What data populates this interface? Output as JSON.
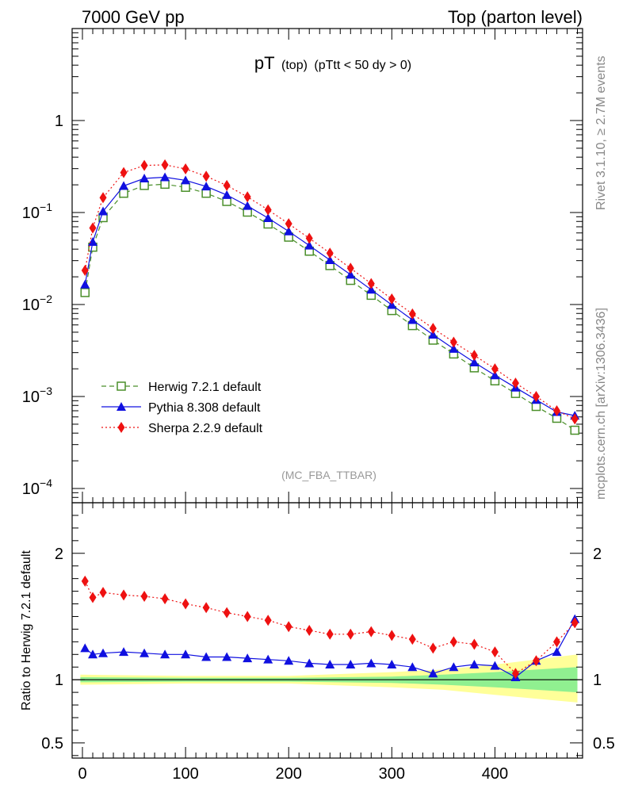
{
  "header": {
    "left": "7000 GeV pp",
    "right": "Top (parton level)"
  },
  "title": {
    "main": "pT",
    "sub1": "(top)",
    "sub2": "(pTtt < 50 dy > 0)"
  },
  "side_labels": {
    "rivet": "Rivet 3.1.10, ≥ 2.7M events",
    "mcplots": "mcplots.cern.ch [arXiv:1306.3436]"
  },
  "analysis_tag": "(MC_FBA_TTBAR)",
  "ratio_ylabel": "Ratio to Herwig 7.2.1 default",
  "colors": {
    "herwig": "#4a8f2a",
    "pythia": "#1010e0",
    "sherpa": "#ee1111",
    "band_inner": "#90f090",
    "band_outer": "#ffff99"
  },
  "chart_data": [
    {
      "type": "line",
      "panel": "main",
      "yscale": "log",
      "xlim": [
        -10,
        485
      ],
      "ylim": [
        7e-05,
        10
      ],
      "xticks": [
        0,
        100,
        200,
        300,
        400
      ],
      "yticks": [
        {
          "value": 0.0001,
          "base": "10",
          "exp": "−4"
        },
        {
          "value": 0.001,
          "base": "10",
          "exp": "−3"
        },
        {
          "value": 0.01,
          "base": "10",
          "exp": "−2"
        },
        {
          "value": 0.1,
          "base": "10",
          "exp": "−1"
        },
        {
          "value": 1,
          "base": "1",
          "exp": ""
        }
      ],
      "legend": {
        "position": "bottom-left",
        "entries": [
          "Herwig 7.2.1 default",
          "Pythia 8.308 default",
          "Sherpa 2.2.9 default"
        ]
      },
      "series": [
        {
          "name": "Herwig 7.2.1 default",
          "key": "herwig",
          "marker": "open-square",
          "line": "dashed",
          "x": [
            2.5,
            10,
            20,
            40,
            60,
            80,
            100,
            120,
            140,
            160,
            180,
            200,
            220,
            240,
            260,
            280,
            300,
            320,
            340,
            360,
            380,
            400,
            420,
            440,
            460,
            477.5
          ],
          "y": [
            0.0135,
            0.042,
            0.088,
            0.162,
            0.197,
            0.203,
            0.188,
            0.162,
            0.132,
            0.101,
            0.075,
            0.054,
            0.038,
            0.0265,
            0.0183,
            0.0126,
            0.0086,
            0.0059,
            0.0041,
            0.0029,
            0.00205,
            0.00148,
            0.00108,
            0.00078,
            0.00058,
            0.00043
          ]
        },
        {
          "name": "Pythia 8.308 default",
          "key": "pythia",
          "marker": "filled-triangle",
          "line": "solid",
          "x": [
            2.5,
            10,
            20,
            40,
            60,
            80,
            100,
            120,
            140,
            160,
            180,
            200,
            220,
            240,
            260,
            280,
            300,
            320,
            340,
            360,
            380,
            400,
            420,
            440,
            460,
            477.5
          ],
          "y": [
            0.0165,
            0.048,
            0.103,
            0.195,
            0.235,
            0.242,
            0.224,
            0.192,
            0.155,
            0.118,
            0.087,
            0.0625,
            0.0438,
            0.0304,
            0.0211,
            0.0145,
            0.0099,
            0.0068,
            0.0047,
            0.0033,
            0.00235,
            0.0017,
            0.00125,
            0.00092,
            0.00068,
            0.00062
          ]
        },
        {
          "name": "Sherpa 2.2.9 default",
          "key": "sherpa",
          "marker": "filled-diamond",
          "line": "dotted",
          "x": [
            2.5,
            10,
            20,
            40,
            60,
            80,
            100,
            120,
            140,
            160,
            180,
            200,
            220,
            240,
            260,
            280,
            300,
            320,
            340,
            360,
            380,
            400,
            420,
            440,
            460,
            477.5
          ],
          "y": [
            0.0235,
            0.068,
            0.145,
            0.272,
            0.325,
            0.33,
            0.298,
            0.248,
            0.197,
            0.148,
            0.107,
            0.0755,
            0.0525,
            0.0362,
            0.0248,
            0.0169,
            0.0115,
            0.0079,
            0.0055,
            0.0039,
            0.0028,
            0.002,
            0.0014,
            0.001,
            0.0007,
            0.00057
          ]
        }
      ]
    },
    {
      "type": "line",
      "panel": "ratio",
      "xlim": [
        -10,
        485
      ],
      "ylim": [
        0.38,
        2.4
      ],
      "xticks": [
        0,
        100,
        200,
        300,
        400
      ],
      "yticks": [
        0.5,
        1,
        2
      ],
      "reference": 1,
      "series": [
        {
          "name": "Pythia 8.308 default",
          "key": "pythia",
          "x": [
            2.5,
            10,
            20,
            40,
            60,
            80,
            100,
            120,
            140,
            160,
            180,
            200,
            220,
            240,
            260,
            280,
            300,
            320,
            340,
            360,
            380,
            400,
            420,
            440,
            460,
            477.5
          ],
          "y": [
            1.25,
            1.2,
            1.21,
            1.22,
            1.21,
            1.2,
            1.2,
            1.18,
            1.18,
            1.17,
            1.16,
            1.15,
            1.13,
            1.12,
            1.12,
            1.13,
            1.12,
            1.1,
            1.05,
            1.1,
            1.12,
            1.11,
            1.02,
            1.15,
            1.22,
            1.48
          ]
        },
        {
          "name": "Sherpa 2.2.9 default",
          "key": "sherpa",
          "x": [
            2.5,
            10,
            20,
            40,
            60,
            80,
            100,
            120,
            140,
            160,
            180,
            200,
            220,
            240,
            260,
            280,
            300,
            320,
            340,
            360,
            380,
            400,
            420,
            440,
            460,
            477.5
          ],
          "y": [
            1.78,
            1.65,
            1.69,
            1.67,
            1.66,
            1.64,
            1.6,
            1.57,
            1.53,
            1.5,
            1.47,
            1.42,
            1.39,
            1.36,
            1.36,
            1.38,
            1.35,
            1.32,
            1.25,
            1.3,
            1.28,
            1.22,
            1.05,
            1.15,
            1.3,
            1.45
          ]
        }
      ],
      "uncertainty_band": {
        "x": [
          -2,
          100,
          200,
          300,
          350,
          400,
          440,
          480
        ],
        "inner_low": [
          0.98,
          0.985,
          0.985,
          0.975,
          0.96,
          0.94,
          0.92,
          0.9
        ],
        "inner_high": [
          1.02,
          1.015,
          1.015,
          1.025,
          1.04,
          1.06,
          1.08,
          1.1
        ],
        "outer_low": [
          0.96,
          0.97,
          0.97,
          0.94,
          0.92,
          0.88,
          0.85,
          0.82
        ],
        "outer_high": [
          1.04,
          1.03,
          1.03,
          1.06,
          1.08,
          1.12,
          1.16,
          1.2
        ]
      }
    }
  ]
}
